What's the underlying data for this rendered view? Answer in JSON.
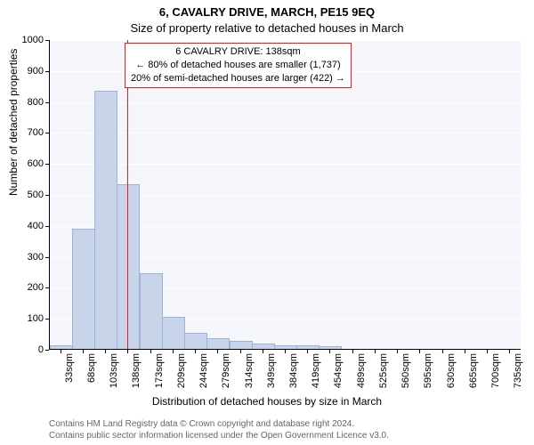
{
  "title_main": "6, CAVALRY DRIVE, MARCH, PE15 9EQ",
  "title_sub": "Size of property relative to detached houses in March",
  "ylabel": "Number of detached properties",
  "xlabel": "Distribution of detached houses by size in March",
  "footer_line1": "Contains HM Land Registry data © Crown copyright and database right 2024.",
  "footer_line2": "Contains public sector information licensed under the Open Government Licence v3.0.",
  "chart": {
    "type": "bar",
    "background_color": "#f4f6fb",
    "grid_color": "#ffffff",
    "axis_color": "#000000",
    "bar_fill": "#c7d4ea",
    "bar_stroke": "#9db4d8",
    "ref_line_color": "#e02020",
    "ylim": [
      0,
      1000
    ],
    "ytick_step": 100,
    "categories": [
      "33sqm",
      "68sqm",
      "103sqm",
      "138sqm",
      "173sqm",
      "209sqm",
      "244sqm",
      "279sqm",
      "314sqm",
      "349sqm",
      "384sqm",
      "419sqm",
      "454sqm",
      "489sqm",
      "525sqm",
      "560sqm",
      "595sqm",
      "630sqm",
      "665sqm",
      "700sqm",
      "735sqm"
    ],
    "values": [
      10,
      385,
      830,
      530,
      240,
      100,
      50,
      32,
      22,
      15,
      10,
      8,
      5,
      0,
      0,
      0,
      0,
      0,
      0,
      0,
      0
    ],
    "ref_index": 3,
    "info_box": {
      "line1": "6 CAVALRY DRIVE: 138sqm",
      "line2": "← 80% of detached houses are smaller (1,737)",
      "line3": "20% of semi-detached houses are larger (422) →",
      "border_color": "#e02020",
      "bg_color": "#ffffff"
    }
  }
}
